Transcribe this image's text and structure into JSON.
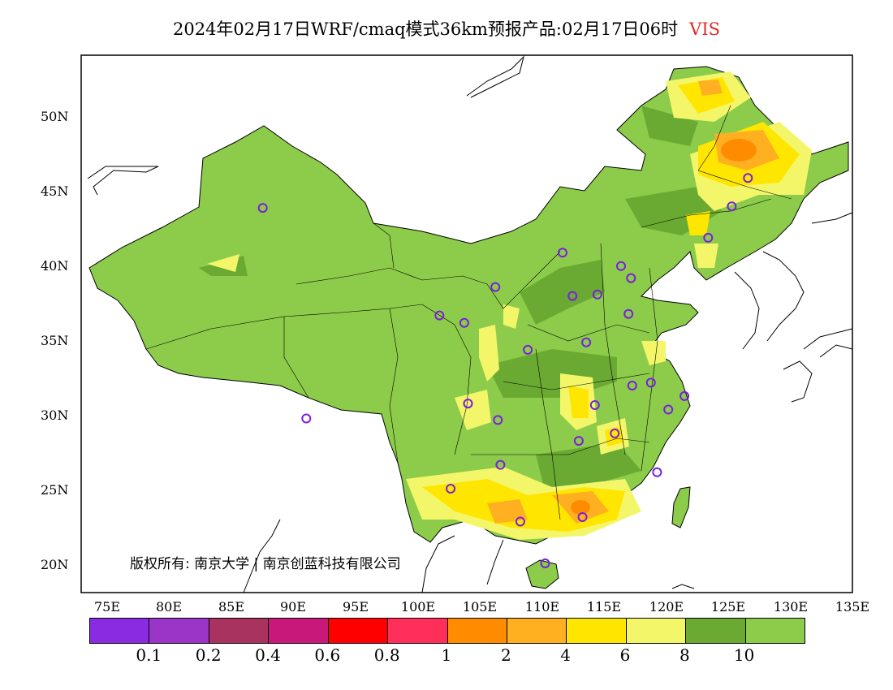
{
  "title": {
    "text": "2024年02月17日WRF/cmaq模式36km预报产品:02月17日06时",
    "variable": "VIS",
    "variable_color": "#e02a2a"
  },
  "lat_labels": [
    "50N",
    "45N",
    "40N",
    "35N",
    "30N",
    "25N",
    "20N"
  ],
  "lon_labels": [
    "75E",
    "80E",
    "85E",
    "90E",
    "95E",
    "100E",
    "105E",
    "110E",
    "115E",
    "120E",
    "125E",
    "130E",
    "135E"
  ],
  "copyright": "版权所有: 南京大学 | 南京创蓝科技有限公司",
  "legend": {
    "labels": [
      "0.1",
      "0.2",
      "0.4",
      "0.6",
      "0.8",
      "1",
      "2",
      "4",
      "6",
      "8",
      "10"
    ],
    "colors": [
      "#8a2be2",
      "#9b35c8",
      "#a8335e",
      "#c8197a",
      "#ff0000",
      "#ff2f5a",
      "#ff8c00",
      "#ffb020",
      "#ffe600",
      "#f4f66a",
      "#6aaa32",
      "#8ccc4a"
    ]
  },
  "stations": [
    {
      "lon": 87.6,
      "lat": 43.8
    },
    {
      "lon": 91.1,
      "lat": 29.7
    },
    {
      "lon": 101.8,
      "lat": 36.6
    },
    {
      "lon": 103.8,
      "lat": 36.1
    },
    {
      "lon": 106.3,
      "lat": 38.5
    },
    {
      "lon": 111.7,
      "lat": 40.8
    },
    {
      "lon": 112.5,
      "lat": 37.9
    },
    {
      "lon": 114.5,
      "lat": 38.0
    },
    {
      "lon": 116.4,
      "lat": 39.9
    },
    {
      "lon": 117.2,
      "lat": 39.1
    },
    {
      "lon": 117.0,
      "lat": 36.7
    },
    {
      "lon": 113.6,
      "lat": 34.8
    },
    {
      "lon": 108.9,
      "lat": 34.3
    },
    {
      "lon": 104.1,
      "lat": 30.7
    },
    {
      "lon": 106.5,
      "lat": 29.6
    },
    {
      "lon": 114.3,
      "lat": 30.6
    },
    {
      "lon": 117.3,
      "lat": 31.9
    },
    {
      "lon": 118.8,
      "lat": 32.1
    },
    {
      "lon": 120.2,
      "lat": 30.3
    },
    {
      "lon": 121.5,
      "lat": 31.2
    },
    {
      "lon": 115.9,
      "lat": 28.7
    },
    {
      "lon": 113.0,
      "lat": 28.2
    },
    {
      "lon": 106.7,
      "lat": 26.6
    },
    {
      "lon": 102.7,
      "lat": 25.0
    },
    {
      "lon": 108.3,
      "lat": 22.8
    },
    {
      "lon": 113.3,
      "lat": 23.1
    },
    {
      "lon": 119.3,
      "lat": 26.1
    },
    {
      "lon": 110.3,
      "lat": 20.0
    },
    {
      "lon": 123.4,
      "lat": 41.8
    },
    {
      "lon": 125.3,
      "lat": 43.9
    },
    {
      "lon": 126.6,
      "lat": 45.8
    }
  ]
}
